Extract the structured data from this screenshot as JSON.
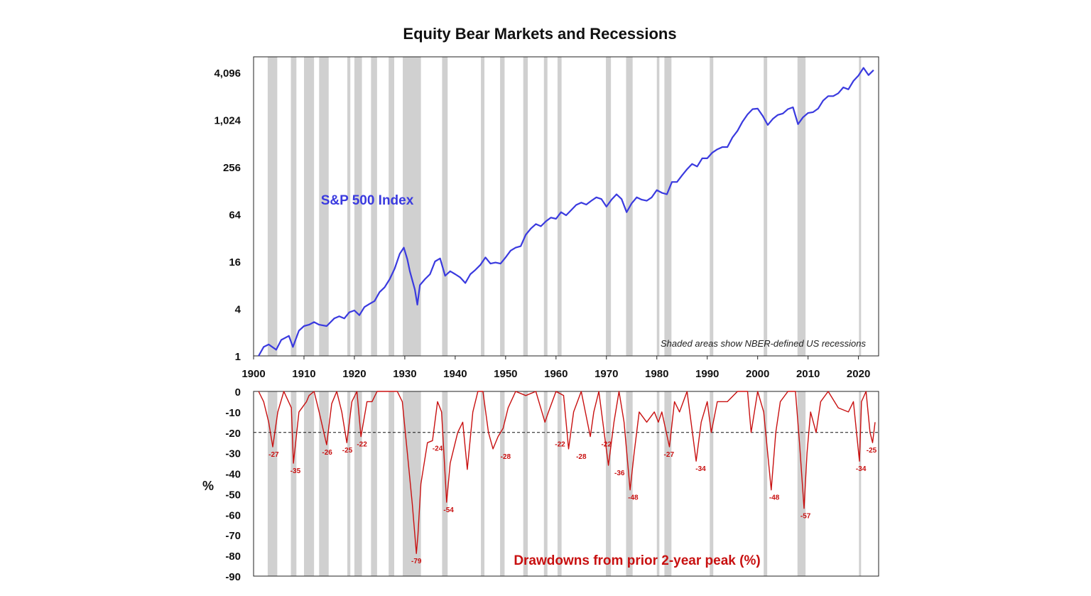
{
  "chart_data": [
    {
      "type": "line",
      "title": "Equity Bear Markets and Recessions",
      "series_label": "S&P 500 Index",
      "note": "Shaded areas show NBER-defined US recessions",
      "yscale": "log2",
      "ylim": [
        1,
        6500
      ],
      "yticks": [
        1,
        4,
        16,
        64,
        256,
        1024,
        4096
      ],
      "ytick_labels": [
        "1",
        "4",
        "16",
        "64",
        "256",
        "1,024",
        "4,096"
      ],
      "xlim": [
        1900,
        2024
      ],
      "xticks": [
        1900,
        1910,
        1920,
        1930,
        1940,
        1950,
        1960,
        1970,
        1980,
        1990,
        2000,
        2010,
        2020
      ],
      "xtick_labels": [
        "1900",
        "1910",
        "1920",
        "1930",
        "1940",
        "1950",
        "1960",
        "1970",
        "1980",
        "1990",
        "2000",
        "2010",
        "2020"
      ],
      "series": [
        {
          "name": "S&P 500 Index",
          "color": "#3a3adf",
          "x": [
            1901,
            1902,
            1903,
            1904.5,
            1905.5,
            1907,
            1907.8,
            1909,
            1910,
            1911,
            1912,
            1913,
            1914.5,
            1916,
            1917,
            1918,
            1919,
            1920,
            1921,
            1922,
            1923,
            1924,
            1925,
            1926,
            1927,
            1928,
            1929,
            1929.8,
            1930.5,
            1931,
            1932,
            1932.5,
            1933,
            1934,
            1935,
            1936,
            1937,
            1938,
            1939,
            1940,
            1941,
            1942,
            1943,
            1944,
            1945,
            1946,
            1947,
            1948,
            1949,
            1950,
            1951,
            1952,
            1953,
            1954,
            1955,
            1956,
            1957,
            1958,
            1959,
            1960,
            1961,
            1962,
            1963,
            1964,
            1965,
            1966,
            1967,
            1968,
            1969,
            1970,
            1971,
            1972,
            1973,
            1974,
            1975,
            1976,
            1977,
            1978,
            1979,
            1980,
            1981,
            1982,
            1983,
            1984,
            1985,
            1986,
            1987,
            1988,
            1989,
            1990,
            1991,
            1992,
            1993,
            1994,
            1995,
            1996,
            1997,
            1998,
            1999,
            2000,
            2001,
            2002,
            2003,
            2004,
            2005,
            2006,
            2007,
            2008,
            2009,
            2010,
            2011,
            2012,
            2013,
            2014,
            2015,
            2016,
            2017,
            2018,
            2019,
            2020,
            2021,
            2022,
            2023
          ],
          "values": [
            1.0,
            1.3,
            1.4,
            1.2,
            1.6,
            1.8,
            1.3,
            2.1,
            2.4,
            2.5,
            2.7,
            2.5,
            2.4,
            3.0,
            3.2,
            3.0,
            3.6,
            3.8,
            3.3,
            4.2,
            4.6,
            5.0,
            6.5,
            7.5,
            9.5,
            13.0,
            20.0,
            24.0,
            17.0,
            12.0,
            7.0,
            4.5,
            8.0,
            9.5,
            11.0,
            16.0,
            17.5,
            10.5,
            12.0,
            11.0,
            10.0,
            8.5,
            11.0,
            12.5,
            14.5,
            18.0,
            15.0,
            15.5,
            15.0,
            18.0,
            22.0,
            24.0,
            25.0,
            35.0,
            42.0,
            48.0,
            45.0,
            52.0,
            58.0,
            56.0,
            68.0,
            62.0,
            72.0,
            84.0,
            90.0,
            85.0,
            95.0,
            105.0,
            100.0,
            80.0,
            98.0,
            115.0,
            100.0,
            68.0,
            88.0,
            105.0,
            98.0,
            95.0,
            105.0,
            130.0,
            120.0,
            115.0,
            165.0,
            165.0,
            200.0,
            240.0,
            280.0,
            260.0,
            330.0,
            330.0,
            390.0,
            430.0,
            460.0,
            460.0,
            610.0,
            740.0,
            970.0,
            1200.0,
            1400.0,
            1420.0,
            1150.0,
            880.0,
            1050.0,
            1180.0,
            1230.0,
            1400.0,
            1480.0,
            900.0,
            1100.0,
            1250.0,
            1280.0,
            1420.0,
            1800.0,
            2050.0,
            2050.0,
            2230.0,
            2650.0,
            2500.0,
            3200.0,
            3750.0,
            4700.0,
            3800.0,
            4400.0
          ]
        }
      ],
      "recessions": [
        [
          1902.8,
          1904.7
        ],
        [
          1907.4,
          1908.5
        ],
        [
          1910.0,
          1912.0
        ],
        [
          1913.0,
          1914.9
        ],
        [
          1918.6,
          1919.2
        ],
        [
          1920.0,
          1921.5
        ],
        [
          1923.3,
          1924.5
        ],
        [
          1926.8,
          1927.9
        ],
        [
          1929.6,
          1933.2
        ],
        [
          1937.4,
          1938.5
        ],
        [
          1945.1,
          1945.8
        ],
        [
          1948.9,
          1949.8
        ],
        [
          1953.5,
          1954.4
        ],
        [
          1957.6,
          1958.3
        ],
        [
          1960.3,
          1961.1
        ],
        [
          1969.9,
          1970.9
        ],
        [
          1973.9,
          1975.2
        ],
        [
          1980.0,
          1980.5
        ],
        [
          1981.5,
          1982.9
        ],
        [
          1990.5,
          1991.2
        ],
        [
          2001.2,
          2001.9
        ],
        [
          2007.9,
          2009.5
        ],
        [
          2020.1,
          2020.4
        ]
      ]
    },
    {
      "type": "line",
      "series_label": "Drawdowns from prior 2-year peak (%)",
      "ylabel": "%",
      "ylim": [
        -90,
        0
      ],
      "yticks": [
        0,
        -10,
        -20,
        -30,
        -40,
        -50,
        -60,
        -70,
        -80,
        -90
      ],
      "ytick_labels": [
        "0",
        "-10",
        "-20",
        "-30",
        "-40",
        "-50",
        "-60",
        "-70",
        "-80",
        "-90"
      ],
      "threshold": -20,
      "series": [
        {
          "name": "Drawdown",
          "color": "#c81010",
          "x": [
            1901,
            1902,
            1903,
            1903.8,
            1904.8,
            1906,
            1907.5,
            1907.9,
            1909,
            1910.5,
            1911,
            1912,
            1913,
            1914.5,
            1915.5,
            1916.5,
            1917.5,
            1918.5,
            1919.5,
            1920.5,
            1921.3,
            1922.5,
            1923.5,
            1924.5,
            1926,
            1927,
            1928.5,
            1929.5,
            1930.5,
            1931.5,
            1932.3,
            1932.6,
            1933.2,
            1934.5,
            1935.5,
            1936.5,
            1937.3,
            1938.3,
            1939,
            1940.5,
            1941.5,
            1942.4,
            1943.5,
            1944.5,
            1945.5,
            1946.6,
            1947.5,
            1948.5,
            1949.5,
            1950.5,
            1952,
            1954,
            1956,
            1957.8,
            1958.5,
            1960,
            1961.5,
            1962.5,
            1963.5,
            1965,
            1966.8,
            1967.5,
            1968.5,
            1970.4,
            1971.5,
            1972.5,
            1973.5,
            1974.7,
            1975.5,
            1976.5,
            1978,
            1979.5,
            1980.3,
            1981,
            1982.5,
            1983.5,
            1984.5,
            1986,
            1987.8,
            1988.8,
            1990,
            1990.8,
            1992,
            1994,
            1996,
            1998,
            1998.7,
            2000,
            2001.2,
            2002.7,
            2003.6,
            2004.5,
            2006,
            2007.5,
            2008.3,
            2009.2,
            2009.8,
            2010.5,
            2011.6,
            2012.5,
            2014,
            2016,
            2018,
            2019,
            2020.2,
            2020.6,
            2021.5,
            2022.3,
            2022.8,
            2023.3
          ],
          "values": [
            0,
            -5,
            -15,
            -27,
            -10,
            0,
            -8,
            -35,
            -10,
            -5,
            -2,
            0,
            -10,
            -26,
            -6,
            0,
            -10,
            -25,
            -5,
            0,
            -22,
            -5,
            -5,
            0,
            0,
            0,
            0,
            -5,
            -30,
            -55,
            -79,
            -70,
            -45,
            -25,
            -24,
            -5,
            -10,
            -54,
            -35,
            -20,
            -15,
            -38,
            -10,
            0,
            0,
            -20,
            -28,
            -22,
            -18,
            -8,
            0,
            -2,
            0,
            -15,
            -10,
            0,
            -2,
            -28,
            -10,
            0,
            -22,
            -10,
            0,
            -36,
            -15,
            0,
            -15,
            -48,
            -30,
            -10,
            -15,
            -10,
            -15,
            -10,
            -27,
            -5,
            -10,
            0,
            -34,
            -15,
            -5,
            -20,
            -5,
            -5,
            0,
            0,
            -20,
            0,
            -10,
            -48,
            -20,
            -5,
            0,
            0,
            -25,
            -57,
            -30,
            -10,
            -20,
            -5,
            0,
            -8,
            -10,
            -5,
            -34,
            -5,
            0,
            -20,
            -25,
            -15
          ],
          "labels": [
            {
              "x": 1904.0,
              "value": -27,
              "text": "-27"
            },
            {
              "x": 1908.3,
              "value": -35,
              "text": "-35"
            },
            {
              "x": 1914.6,
              "value": -26,
              "text": "-26"
            },
            {
              "x": 1918.6,
              "value": -25,
              "text": "-25"
            },
            {
              "x": 1921.5,
              "value": -22,
              "text": "-22"
            },
            {
              "x": 1932.3,
              "value": -79,
              "text": "-79"
            },
            {
              "x": 1936.5,
              "value": -24,
              "text": "-24"
            },
            {
              "x": 1938.7,
              "value": -54,
              "text": "-54"
            },
            {
              "x": 1950.0,
              "value": -28,
              "text": "-28"
            },
            {
              "x": 1960.8,
              "value": -22,
              "text": "-22"
            },
            {
              "x": 1965.0,
              "value": -28,
              "text": "-28"
            },
            {
              "x": 1970.0,
              "value": -22,
              "text": "-22"
            },
            {
              "x": 1972.6,
              "value": -36,
              "text": "-36"
            },
            {
              "x": 1975.3,
              "value": -48,
              "text": "-48"
            },
            {
              "x": 1982.4,
              "value": -27,
              "text": "-27"
            },
            {
              "x": 1988.7,
              "value": -34,
              "text": "-34"
            },
            {
              "x": 2003.3,
              "value": -48,
              "text": "-48"
            },
            {
              "x": 2009.5,
              "value": -57,
              "text": "-57"
            },
            {
              "x": 2020.5,
              "value": -34,
              "text": "-34"
            },
            {
              "x": 2024.0,
              "value": -25,
              "text": "-25"
            }
          ]
        }
      ]
    }
  ]
}
